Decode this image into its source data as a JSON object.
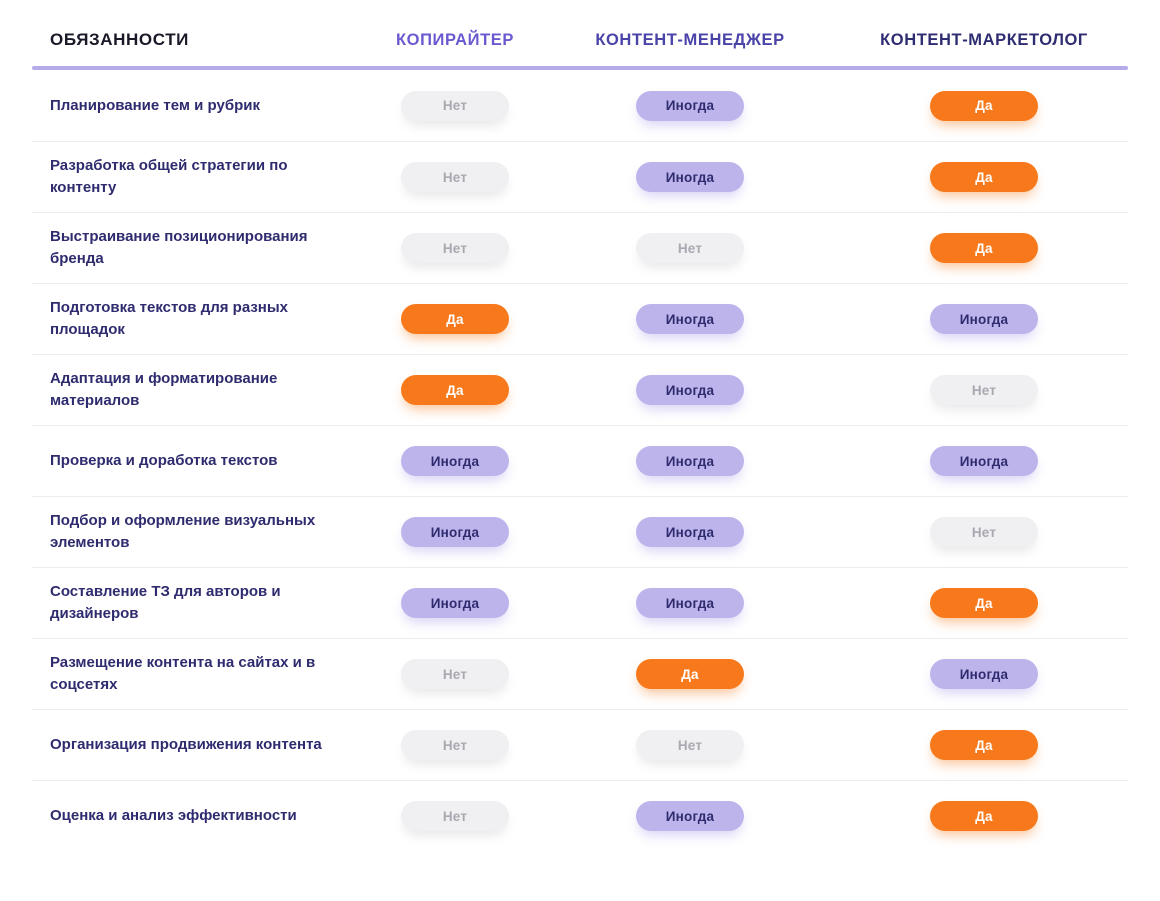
{
  "chart_data": {
    "type": "table",
    "columns": [
      {
        "label": "ОБЯЗАННОСТИ",
        "color": "#191927"
      },
      {
        "label": "КОПИРАЙТЕР",
        "color": "#6A5AD0"
      },
      {
        "label": "КОНТЕНТ-МЕНЕДЖЕР",
        "color": "#4A44A8"
      },
      {
        "label": "КОНТЕНТ-МАРКЕТОЛОГ",
        "color": "#2F2D72"
      }
    ],
    "rows": [
      {
        "duty": "Планирование тем и рубрик",
        "values": [
          "Нет",
          "Иногда",
          "Да"
        ]
      },
      {
        "duty": "Разработка общей стратегии по контенту",
        "values": [
          "Нет",
          "Иногда",
          "Да"
        ]
      },
      {
        "duty": "Выстраивание позиционирования бренда",
        "values": [
          "Нет",
          "Нет",
          "Да"
        ]
      },
      {
        "duty": "Подготовка текстов для разных площадок",
        "values": [
          "Да",
          "Иногда",
          "Иногда"
        ]
      },
      {
        "duty": "Адаптация и форматирование материалов",
        "values": [
          "Да",
          "Иногда",
          "Нет"
        ]
      },
      {
        "duty": "Проверка и доработка текстов",
        "values": [
          "Иногда",
          "Иногда",
          "Иногда"
        ]
      },
      {
        "duty": "Подбор и оформление визуальных элементов",
        "values": [
          "Иногда",
          "Иногда",
          "Нет"
        ]
      },
      {
        "duty": "Составление ТЗ для авторов и дизайнеров",
        "values": [
          "Иногда",
          "Иногда",
          "Да"
        ]
      },
      {
        "duty": "Размещение контента на сайтах и в соцсетях",
        "values": [
          "Нет",
          "Да",
          "Иногда"
        ]
      },
      {
        "duty": "Организация продвижения контента",
        "values": [
          "Нет",
          "Нет",
          "Да"
        ]
      },
      {
        "duty": "Оценка и анализ эффективности",
        "values": [
          "Нет",
          "Иногда",
          "Да"
        ]
      }
    ]
  },
  "badges": {
    "Да": {
      "bg": "#F7791B",
      "text": "#FFFFFF",
      "shadow": "rgba(247,121,27,0.45)"
    },
    "Иногда": {
      "bg": "#BDB4EC",
      "text": "#2E2B6E",
      "shadow": "rgba(120,106,220,0.30)"
    },
    "Нет": {
      "bg": "#F0F0F2",
      "text": "#A8A8B0",
      "shadow": "rgba(0,0,0,0.10)"
    }
  },
  "styles": {
    "divider": "#B6ABE9",
    "row_border": "#ECECEC",
    "duty_color": "#2E2B6E"
  }
}
